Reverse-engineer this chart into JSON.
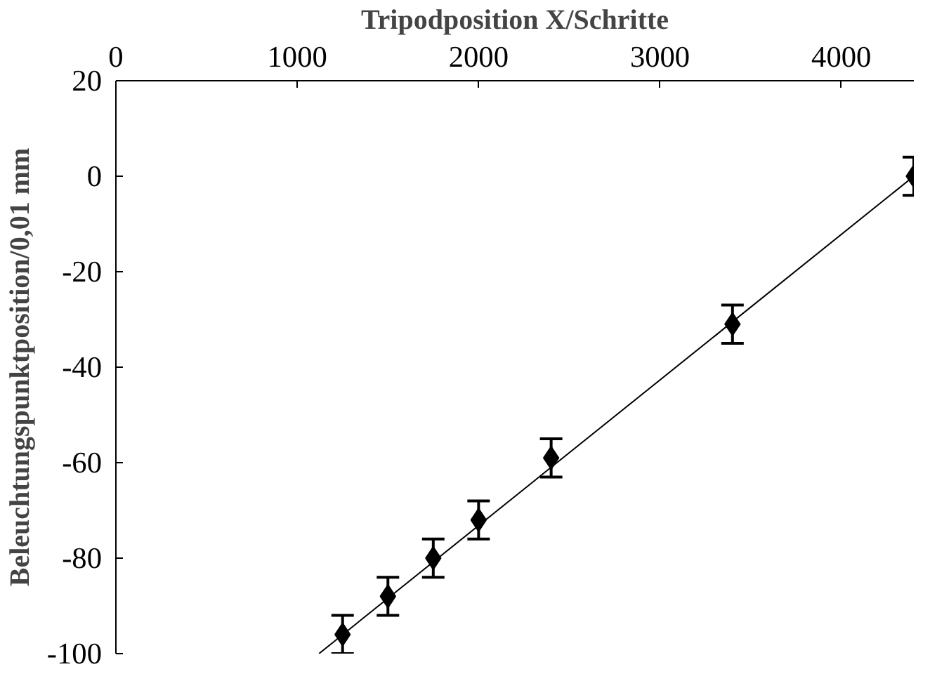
{
  "chart_data": {
    "type": "scatter",
    "xlabel": "Tripodposition X/Schritte",
    "ylabel": "Beleuchtungspunktposition/0,01 mm",
    "xlim": [
      0,
      4400
    ],
    "xticks": [
      0,
      1000,
      2000,
      3000,
      4000
    ],
    "ylim": [
      -100,
      20
    ],
    "yticks": [
      -100,
      -80,
      -60,
      -40,
      -20,
      0,
      20
    ],
    "grid": false,
    "series": [
      {
        "color": "#000000",
        "marker": "diamond",
        "x": [
          1250,
          1500,
          1750,
          2000,
          2400,
          3400,
          4400
        ],
        "values": [
          -96,
          -88,
          -80,
          -72,
          -59,
          -31,
          0
        ],
        "errors": [
          4,
          4,
          4,
          4,
          4,
          4,
          4
        ]
      },
      {
        "type": "line",
        "color": "#000000",
        "x": [
          1120,
          4400
        ],
        "values": [
          -100,
          0
        ],
        "line_style": "solid",
        "marker": "none"
      }
    ]
  }
}
